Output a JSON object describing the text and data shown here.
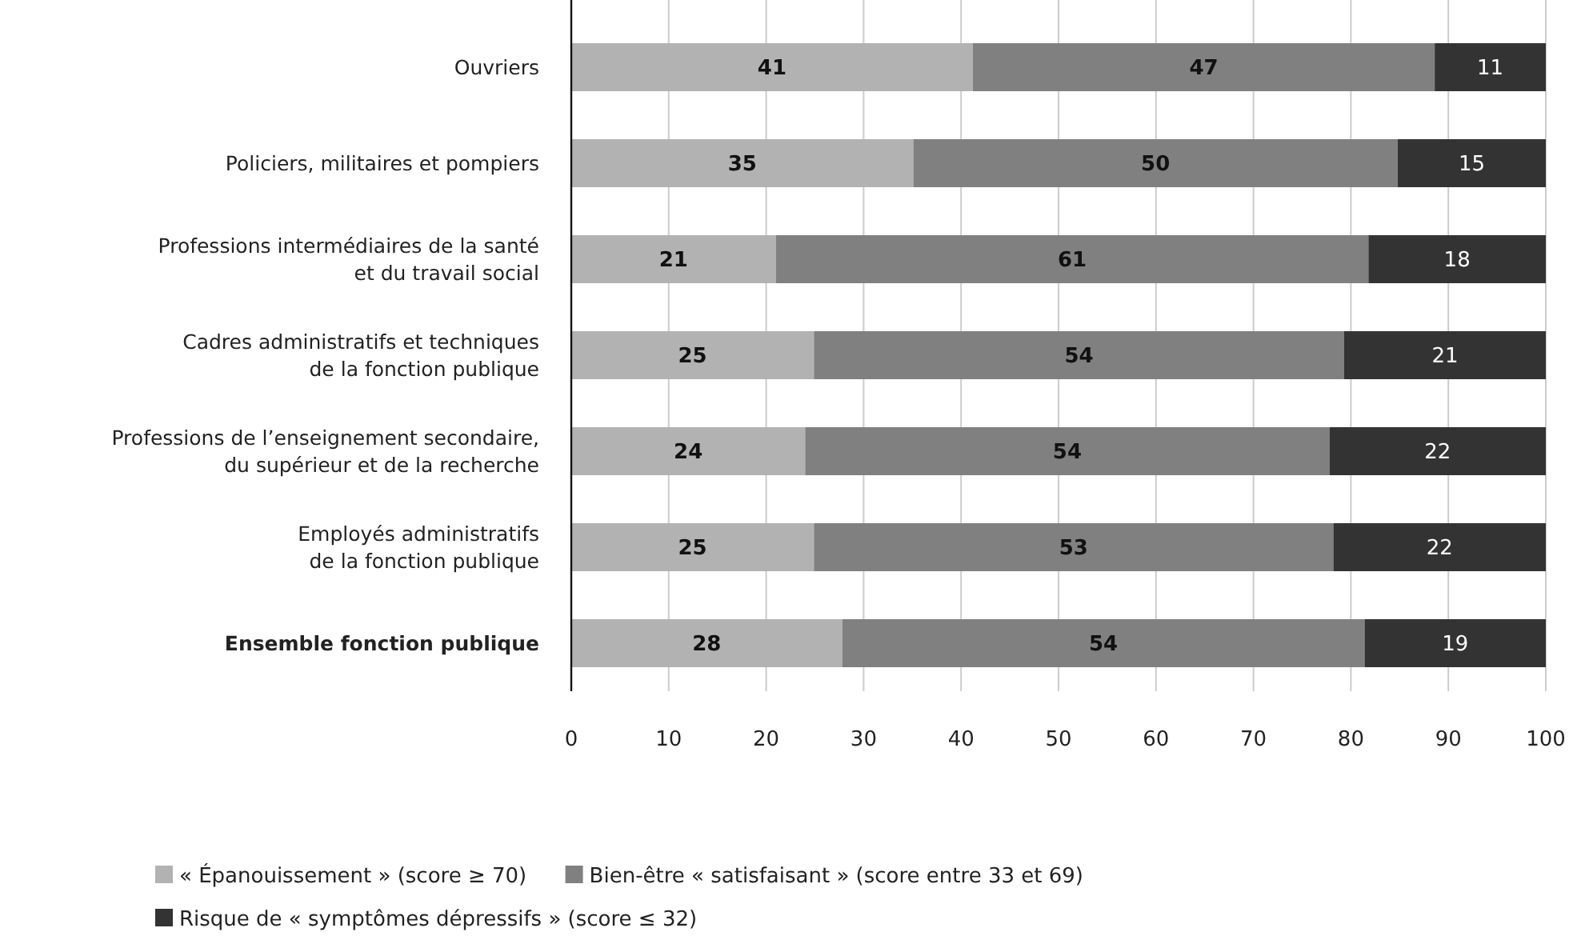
{
  "chart_data": {
    "type": "bar",
    "orientation": "horizontal",
    "stacked": true,
    "categories": [
      "Ouvriers",
      "Policiers, militaires et pompiers",
      "Professions intermédiaires de la santé\net du travail social",
      "Cadres administratifs et techniques\nde la fonction publique",
      "Professions de l’enseignement secondaire,\ndu supérieur et de la recherche",
      "Employés administratifs\nde la fonction publique",
      "Ensemble fonction publique"
    ],
    "series": [
      {
        "name": "« Épanouissement » (score ≥ 70)",
        "color": "#b2b2b2",
        "values": [
          41.2,
          35.1,
          21.0,
          24.9,
          24.0,
          24.9,
          27.8
        ],
        "value_labels": [
          "41",
          "35",
          "21",
          "25",
          "24",
          "25",
          "28"
        ]
      },
      {
        "name": "Bien-être « satisfaisant » (score entre 33 et 69)",
        "color": "#808080",
        "values": [
          47.4,
          49.7,
          60.8,
          54.4,
          53.8,
          53.3,
          53.6
        ],
        "value_labels": [
          "47",
          "50",
          "61",
          "54",
          "54",
          "53",
          "54"
        ]
      },
      {
        "name": "Risque de « symptômes dépressifs » (score ≤ 32)",
        "color": "#333333",
        "values": [
          11.4,
          15.2,
          18.2,
          20.7,
          22.2,
          21.8,
          18.6
        ],
        "value_labels": [
          "11",
          "15",
          "18",
          "21",
          "22",
          "22",
          "19"
        ]
      }
    ],
    "xlim": [
      0,
      100
    ],
    "xticks": [
      0,
      10,
      20,
      30,
      40,
      50,
      60,
      70,
      80,
      90,
      100
    ],
    "grid": "x",
    "legend": "bottom"
  }
}
